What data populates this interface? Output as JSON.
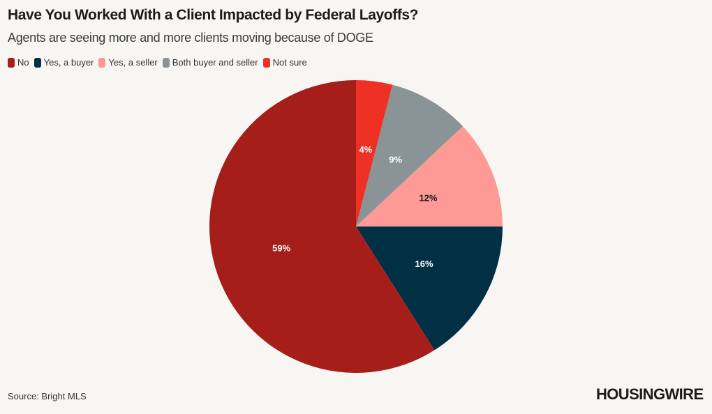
{
  "header": {
    "title": "Have You Worked With a Client Impacted by Federal Layoffs?",
    "subtitle": "Agents are seeing more and more clients moving because of DOGE"
  },
  "footer": {
    "source": "Source: Bright MLS",
    "logo_text": "HOUSINGWIRE"
  },
  "chart_data": {
    "type": "pie",
    "title": "Have You Worked With a Client Impacted by Federal Layoffs?",
    "subtitle": "Agents are seeing more and more clients moving because of DOGE",
    "legend_position": "top-left",
    "slices": [
      {
        "label": "Not sure",
        "value": 4,
        "display": "4%",
        "color": "#ee3124",
        "text_color": "#ffffff"
      },
      {
        "label": "Both buyer and seller",
        "value": 9,
        "display": "9%",
        "color": "#8a9396",
        "text_color": "#ffffff"
      },
      {
        "label": "Yes, a seller",
        "value": 12,
        "display": "12%",
        "color": "#fe9a95",
        "text_color": "#1c1c1c"
      },
      {
        "label": "Yes, a buyer",
        "value": 16,
        "display": "16%",
        "color": "#012f43",
        "text_color": "#ffffff"
      },
      {
        "label": "No",
        "value": 59,
        "display": "59%",
        "color": "#a51e19",
        "text_color": "#ffffff"
      }
    ],
    "legend_order": [
      "No",
      "Yes, a buyer",
      "Yes, a seller",
      "Both buyer and seller",
      "Not sure"
    ]
  }
}
